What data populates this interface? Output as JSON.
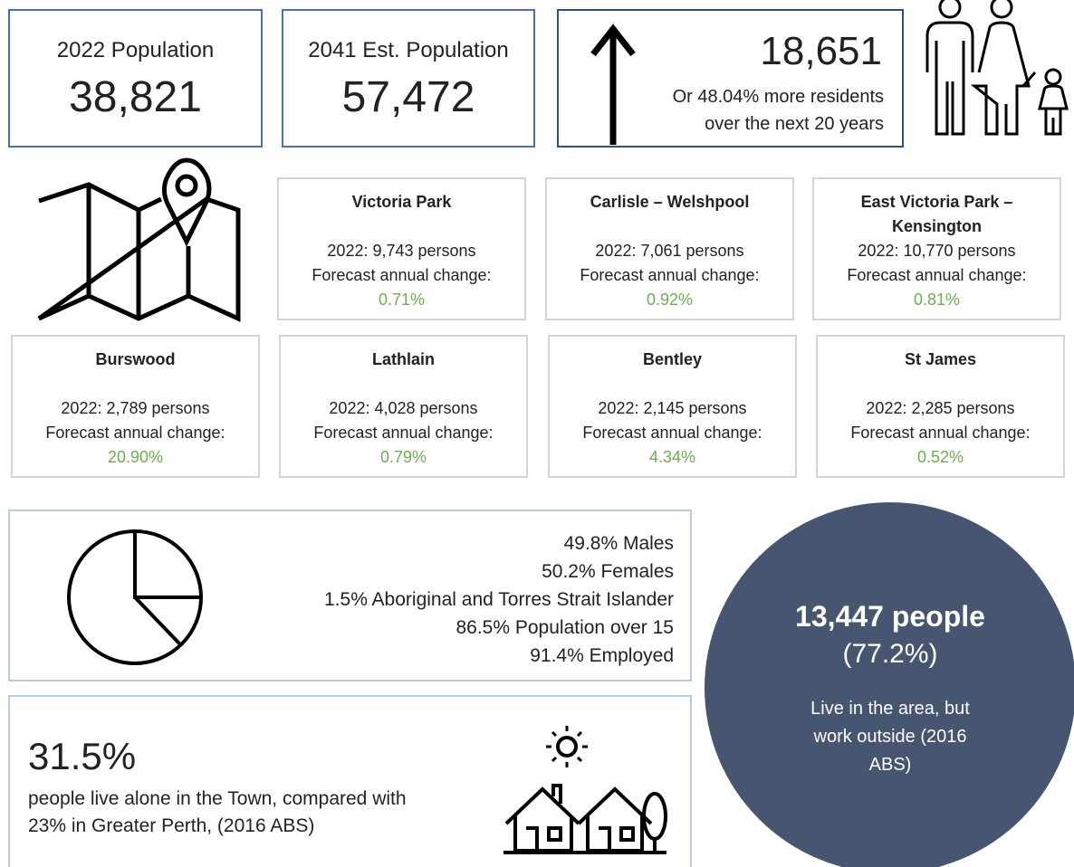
{
  "summary": [
    {
      "label": "2022 Population",
      "value": "38,821"
    },
    {
      "label": "2041 Est. Population",
      "value": "57,472"
    }
  ],
  "growth": {
    "value": "18,651",
    "lines": [
      "Or 48.04% more residents",
      "over the next 20 years"
    ]
  },
  "suburbs": [
    {
      "name": "Victoria Park",
      "population": "2022: 9,743 persons",
      "change_label": "Forecast annual change:",
      "change": "0.71%"
    },
    {
      "name": "Carlisle – Welshpool",
      "population": "2022: 7,061 persons",
      "change_label": "Forecast annual change:",
      "change": "0.92%"
    },
    {
      "name": "East Victoria Park – Kensington",
      "population": "2022: 10,770 persons",
      "change_label": "Forecast annual change:",
      "change": "0.81%"
    },
    {
      "name": "Burswood",
      "population": "2022: 2,789 persons",
      "change_label": "Forecast annual change:",
      "change": "20.90%"
    },
    {
      "name": "Lathlain",
      "population": "2022: 4,028 persons",
      "change_label": "Forecast annual change:",
      "change": "0.79%"
    },
    {
      "name": "Bentley",
      "population": "2022: 2,145 persons",
      "change_label": "Forecast annual change:",
      "change": "4.34%"
    },
    {
      "name": "St James",
      "population": "2022: 2,285 persons",
      "change_label": "Forecast annual change:",
      "change": "0.52%"
    }
  ],
  "demographics": [
    "49.8% Males",
    "50.2% Females",
    "1.5% Aboriginal and Torres Strait Islander",
    "86.5% Population over 15",
    "91.4% Employed"
  ],
  "living_alone": {
    "value": "31.5%",
    "text": "people live alone in the Town, compared with 23% in Greater Perth, (2016 ABS)"
  },
  "commuters": {
    "value": "13,447 people",
    "percent": "(77.2%)",
    "text": "Live in the area, but work outside (2016 ABS)"
  }
}
